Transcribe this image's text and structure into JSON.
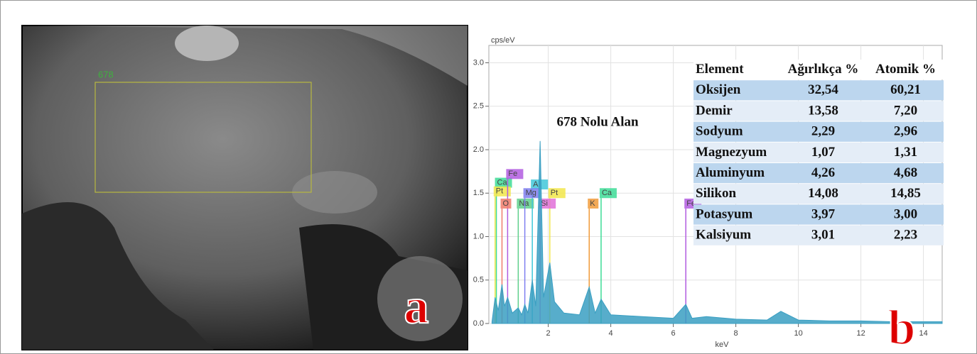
{
  "sem_image": {
    "region_label": "678",
    "panel_label": "a"
  },
  "chart_data": {
    "type": "area",
    "y_label": "cps/eV",
    "x_label": "keV",
    "annotation": "678 Nolu Alan",
    "panel_label": "b",
    "color": "#3a9fc2",
    "grid": true,
    "xlim": [
      0.1,
      14.6
    ],
    "xticks": [
      2,
      4,
      6,
      8,
      10,
      12,
      14
    ],
    "ylim": [
      0,
      3.2
    ],
    "yticks": [
      {
        "value": 0,
        "label": "0.0"
      },
      0.5,
      {
        "value": 1,
        "label": "1.0"
      },
      1.5,
      {
        "value": 2,
        "label": "2.0"
      },
      2.5,
      {
        "value": 3,
        "label": "3.0"
      }
    ],
    "x": [
      0.2,
      0.3,
      0.4,
      0.52,
      0.6,
      0.7,
      0.85,
      1.04,
      1.15,
      1.25,
      1.35,
      1.49,
      1.6,
      1.74,
      1.85,
      2.05,
      2.2,
      2.5,
      3.0,
      3.31,
      3.5,
      3.69,
      4.0,
      5.0,
      6.0,
      6.4,
      6.6,
      7.06,
      8.0,
      9.0,
      9.44,
      10.0,
      11.0,
      12.0,
      13.0,
      14.0,
      14.6
    ],
    "values": [
      0.02,
      0.3,
      0.15,
      0.45,
      0.2,
      0.3,
      0.12,
      0.18,
      0.1,
      0.22,
      0.12,
      0.5,
      0.2,
      2.1,
      0.3,
      0.7,
      0.25,
      0.12,
      0.1,
      0.42,
      0.12,
      0.28,
      0.1,
      0.08,
      0.06,
      0.22,
      0.06,
      0.08,
      0.05,
      0.04,
      0.14,
      0.04,
      0.03,
      0.03,
      0.02,
      0.02,
      0.02
    ],
    "element_lines": [
      {
        "label": "Ca",
        "energy": 0.34,
        "color": "#3ddc97"
      },
      {
        "label": "Pt",
        "energy": 0.3,
        "color": "#f2e64a"
      },
      {
        "label": "Fe",
        "energy": 0.7,
        "color": "#b15ce0"
      },
      {
        "label": "O",
        "energy": 0.52,
        "color": "#f07b6b"
      },
      {
        "label": "Na",
        "energy": 1.04,
        "color": "#5fd08c"
      },
      {
        "label": "Al",
        "energy": 1.49,
        "color": "#41c7d9"
      },
      {
        "label": "Mg",
        "energy": 1.25,
        "color": "#7f7ff0"
      },
      {
        "label": "Pt",
        "energy": 2.05,
        "color": "#f2e64a"
      },
      {
        "label": "Si",
        "energy": 1.74,
        "color": "#e070d8"
      },
      {
        "label": "K",
        "energy": 3.31,
        "color": "#f09a3a"
      },
      {
        "label": "Ca",
        "energy": 3.69,
        "color": "#3ddc97"
      },
      {
        "label": "Fe",
        "energy": 6.4,
        "color": "#b15ce0"
      }
    ]
  },
  "table": {
    "columns": [
      "Element",
      "Ağırlıkça %",
      "Atomik %"
    ],
    "rows": [
      [
        "Oksijen",
        "32,54",
        "60,21"
      ],
      [
        "Demir",
        "13,58",
        "7,20"
      ],
      [
        "Sodyum",
        "2,29",
        "2,96"
      ],
      [
        "Magnezyum",
        "1,07",
        "1,31"
      ],
      [
        "Aluminyum",
        "4,26",
        "4,68"
      ],
      [
        "Silikon",
        "14,08",
        "14,85"
      ],
      [
        "Potasyum",
        "3,97",
        "3,00"
      ],
      [
        "Kalsiyum",
        "3,01",
        "2,23"
      ]
    ]
  }
}
